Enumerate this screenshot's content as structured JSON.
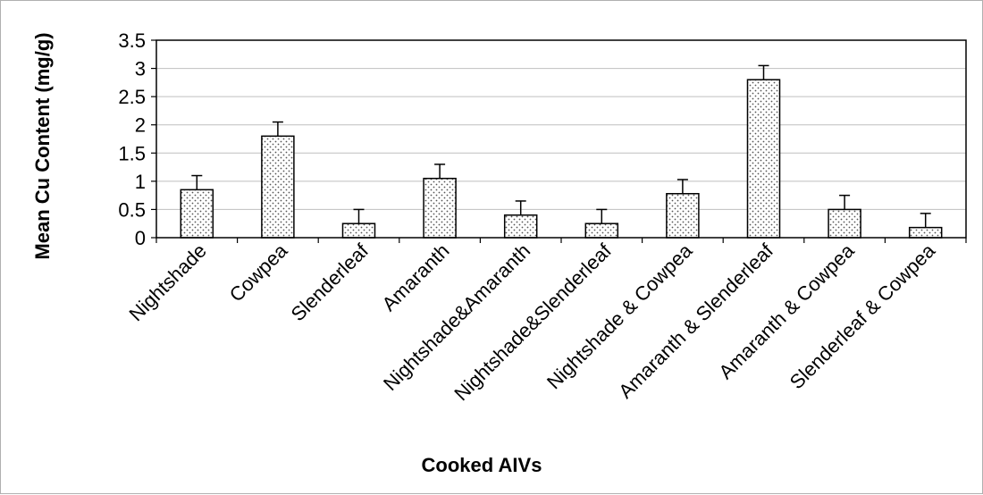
{
  "chart_data": {
    "type": "bar",
    "title": "",
    "xlabel": "Cooked AIVs",
    "ylabel": "Mean Cu Content (mg/g)",
    "ylim": [
      0,
      3.5
    ],
    "yticks": [
      "0",
      "0.5",
      "1",
      "1.5",
      "2",
      "2.5",
      "3",
      "3.5"
    ],
    "ytick_values": [
      0,
      0.5,
      1,
      1.5,
      2,
      2.5,
      3,
      3.5
    ],
    "grid": true,
    "legend": "none",
    "categories": [
      "Nightshade",
      "Cowpea",
      "Slenderleaf",
      "Amaranth",
      "Nightshade&Amaranth",
      "Nightshade&Slenderleaf",
      "Nightshade & Cowpea",
      "Amaranth & Slenderleaf",
      "Amaranth & Cowpea",
      "Slenderleaf & Cowpea"
    ],
    "values": [
      0.85,
      1.8,
      0.25,
      1.05,
      0.4,
      0.25,
      0.78,
      2.8,
      0.5,
      0.18
    ],
    "errors": [
      0.25,
      0.25,
      0.25,
      0.25,
      0.25,
      0.25,
      0.25,
      0.25,
      0.25,
      0.25
    ],
    "bar_fill": "dotted",
    "colors": {
      "bar_edge": "#000000",
      "bar_dot": "#555555",
      "grid": "#bfbfbf"
    }
  }
}
